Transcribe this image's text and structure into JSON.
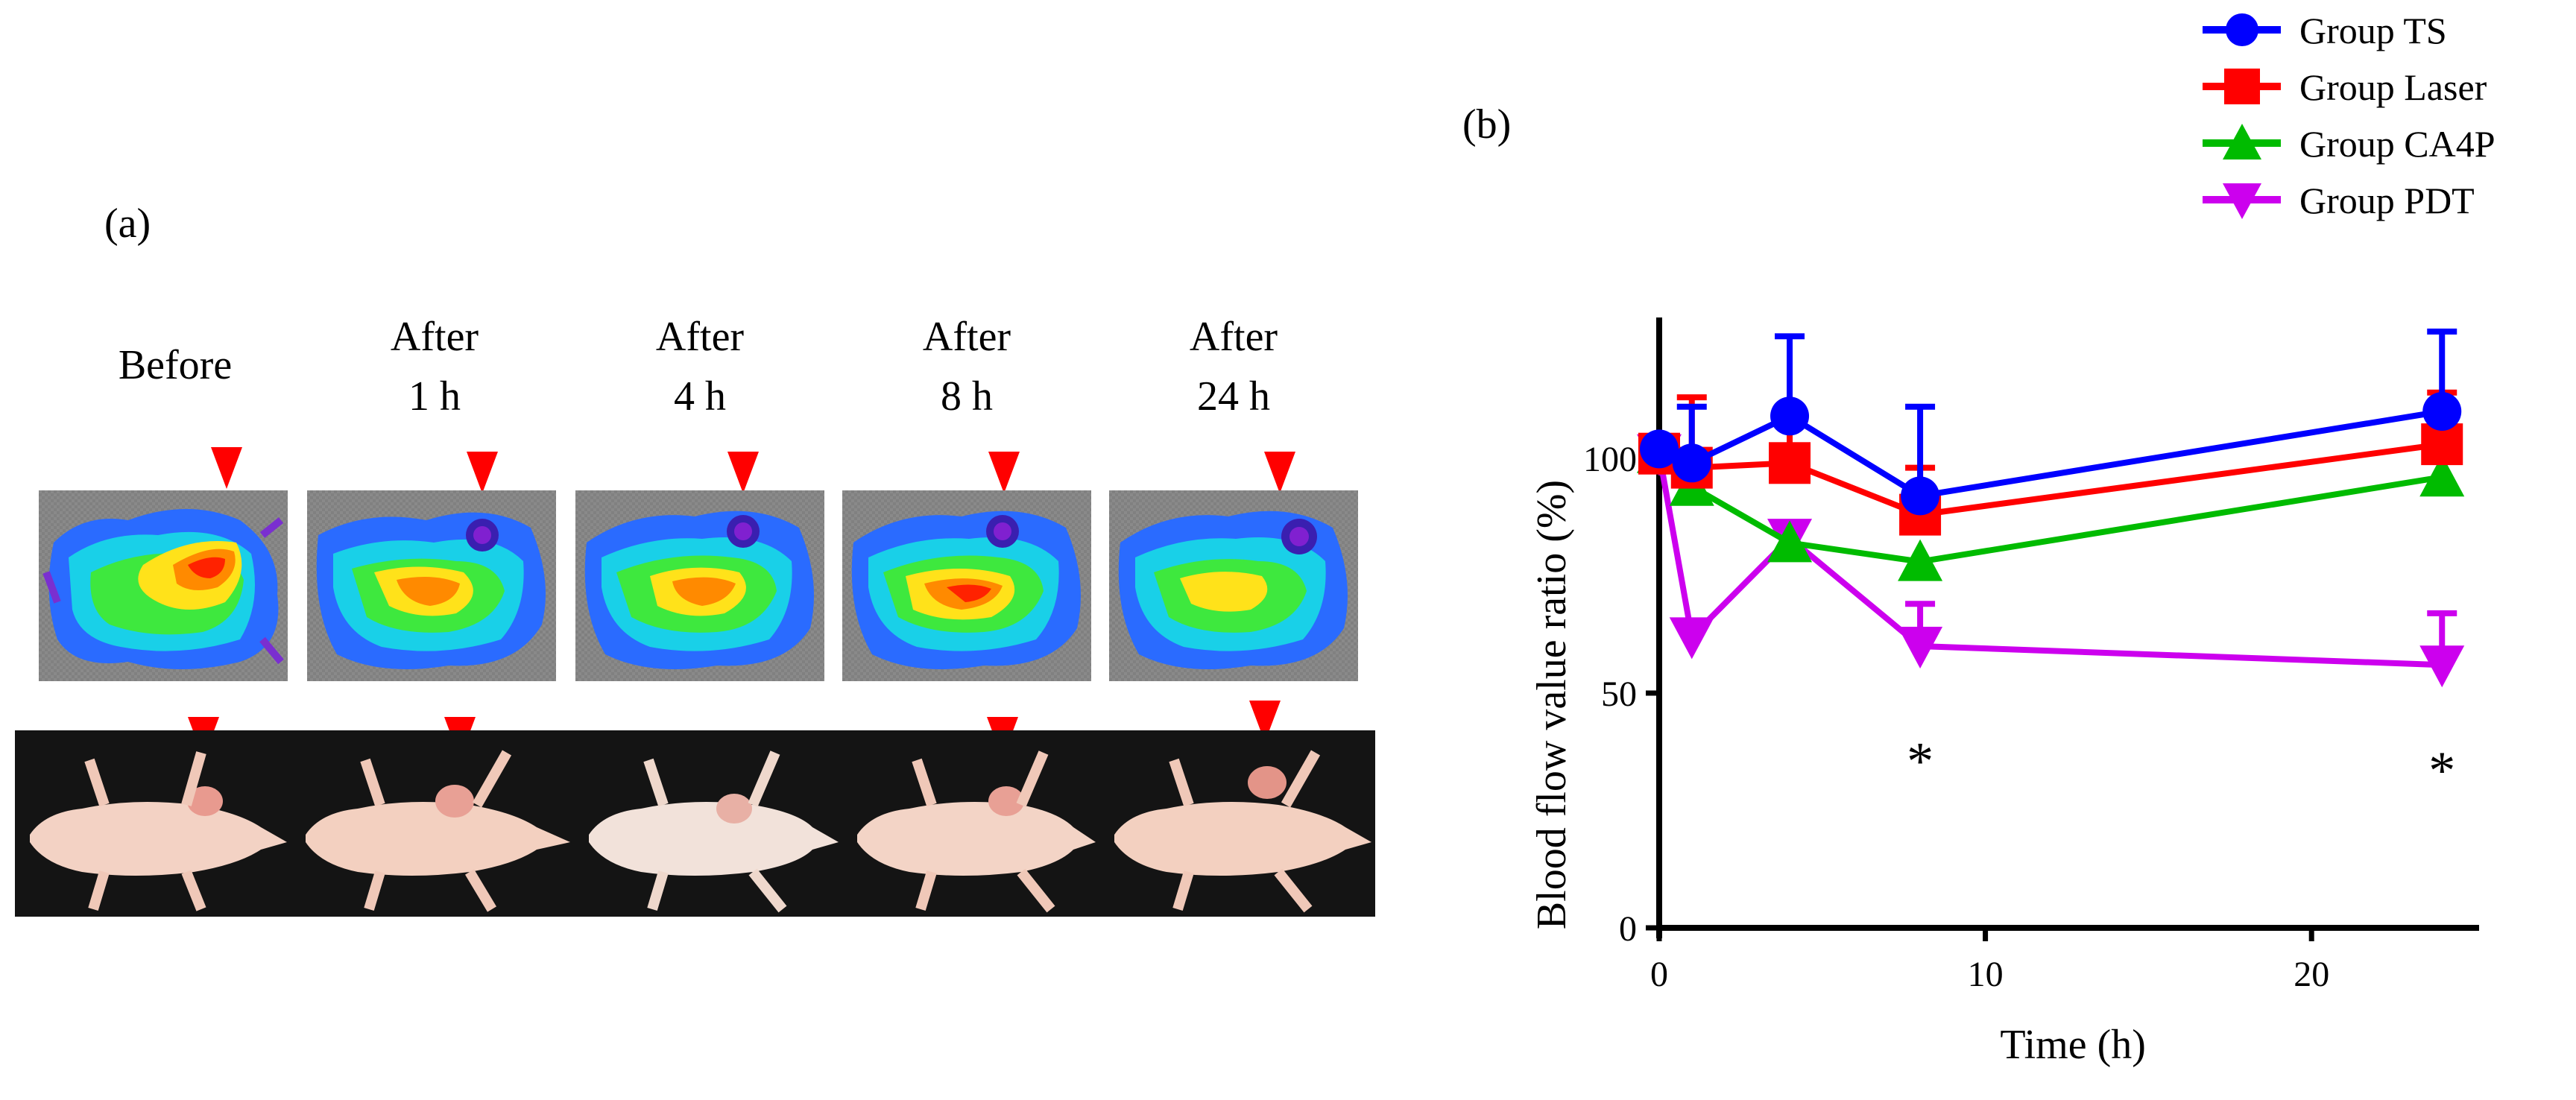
{
  "panel_a": {
    "label": "(a)",
    "timepoints": [
      {
        "line1": "Before",
        "line2": ""
      },
      {
        "line1": "After",
        "line2": "1 h"
      },
      {
        "line1": "After",
        "line2": "4 h"
      },
      {
        "line1": "After",
        "line2": "8 h"
      },
      {
        "line1": "After",
        "line2": "24 h"
      }
    ]
  },
  "colors": {
    "arrow": "#ff0000",
    "ts": "#0000ff",
    "laser": "#ff0000",
    "ca4p": "#00bb00",
    "pdt": "#cc00ee"
  },
  "chart_data": {
    "type": "line",
    "panel_label": "(b)",
    "xlabel": "Time (h)",
    "ylabel": "Blood flow value ratio (%)",
    "xlim": [
      0,
      25
    ],
    "ylim": [
      0,
      130
    ],
    "xticks": [
      0,
      10,
      20
    ],
    "yticks": [
      0,
      50,
      100
    ],
    "x": [
      0,
      1,
      4,
      8,
      24
    ],
    "series": [
      {
        "name": "Group TS",
        "marker": "circle",
        "color": "#0000ff",
        "values": [
          102,
          99,
          109,
          92,
          110
        ],
        "errors": [
          0,
          12,
          17,
          19,
          17
        ]
      },
      {
        "name": "Group Laser",
        "marker": "square",
        "color": "#ff0000",
        "values": [
          101,
          98,
          99,
          88,
          103
        ],
        "errors": [
          0,
          15,
          12,
          10,
          11
        ]
      },
      {
        "name": "Group CA4P",
        "marker": "triangle-up",
        "color": "#00bb00",
        "values": [
          101,
          94,
          82,
          78,
          96
        ],
        "errors": [
          0,
          0,
          0,
          0,
          0
        ]
      },
      {
        "name": "Group PDT",
        "marker": "triangle-down",
        "color": "#cc00ee",
        "values": [
          101,
          62,
          83,
          60,
          56
        ],
        "errors": [
          0,
          0,
          0,
          9,
          11
        ]
      }
    ],
    "annotations": [
      {
        "x": 8,
        "y": 38,
        "text": "*"
      },
      {
        "x": 24,
        "y": 36,
        "text": "*"
      }
    ],
    "legend_position": "top-right"
  }
}
